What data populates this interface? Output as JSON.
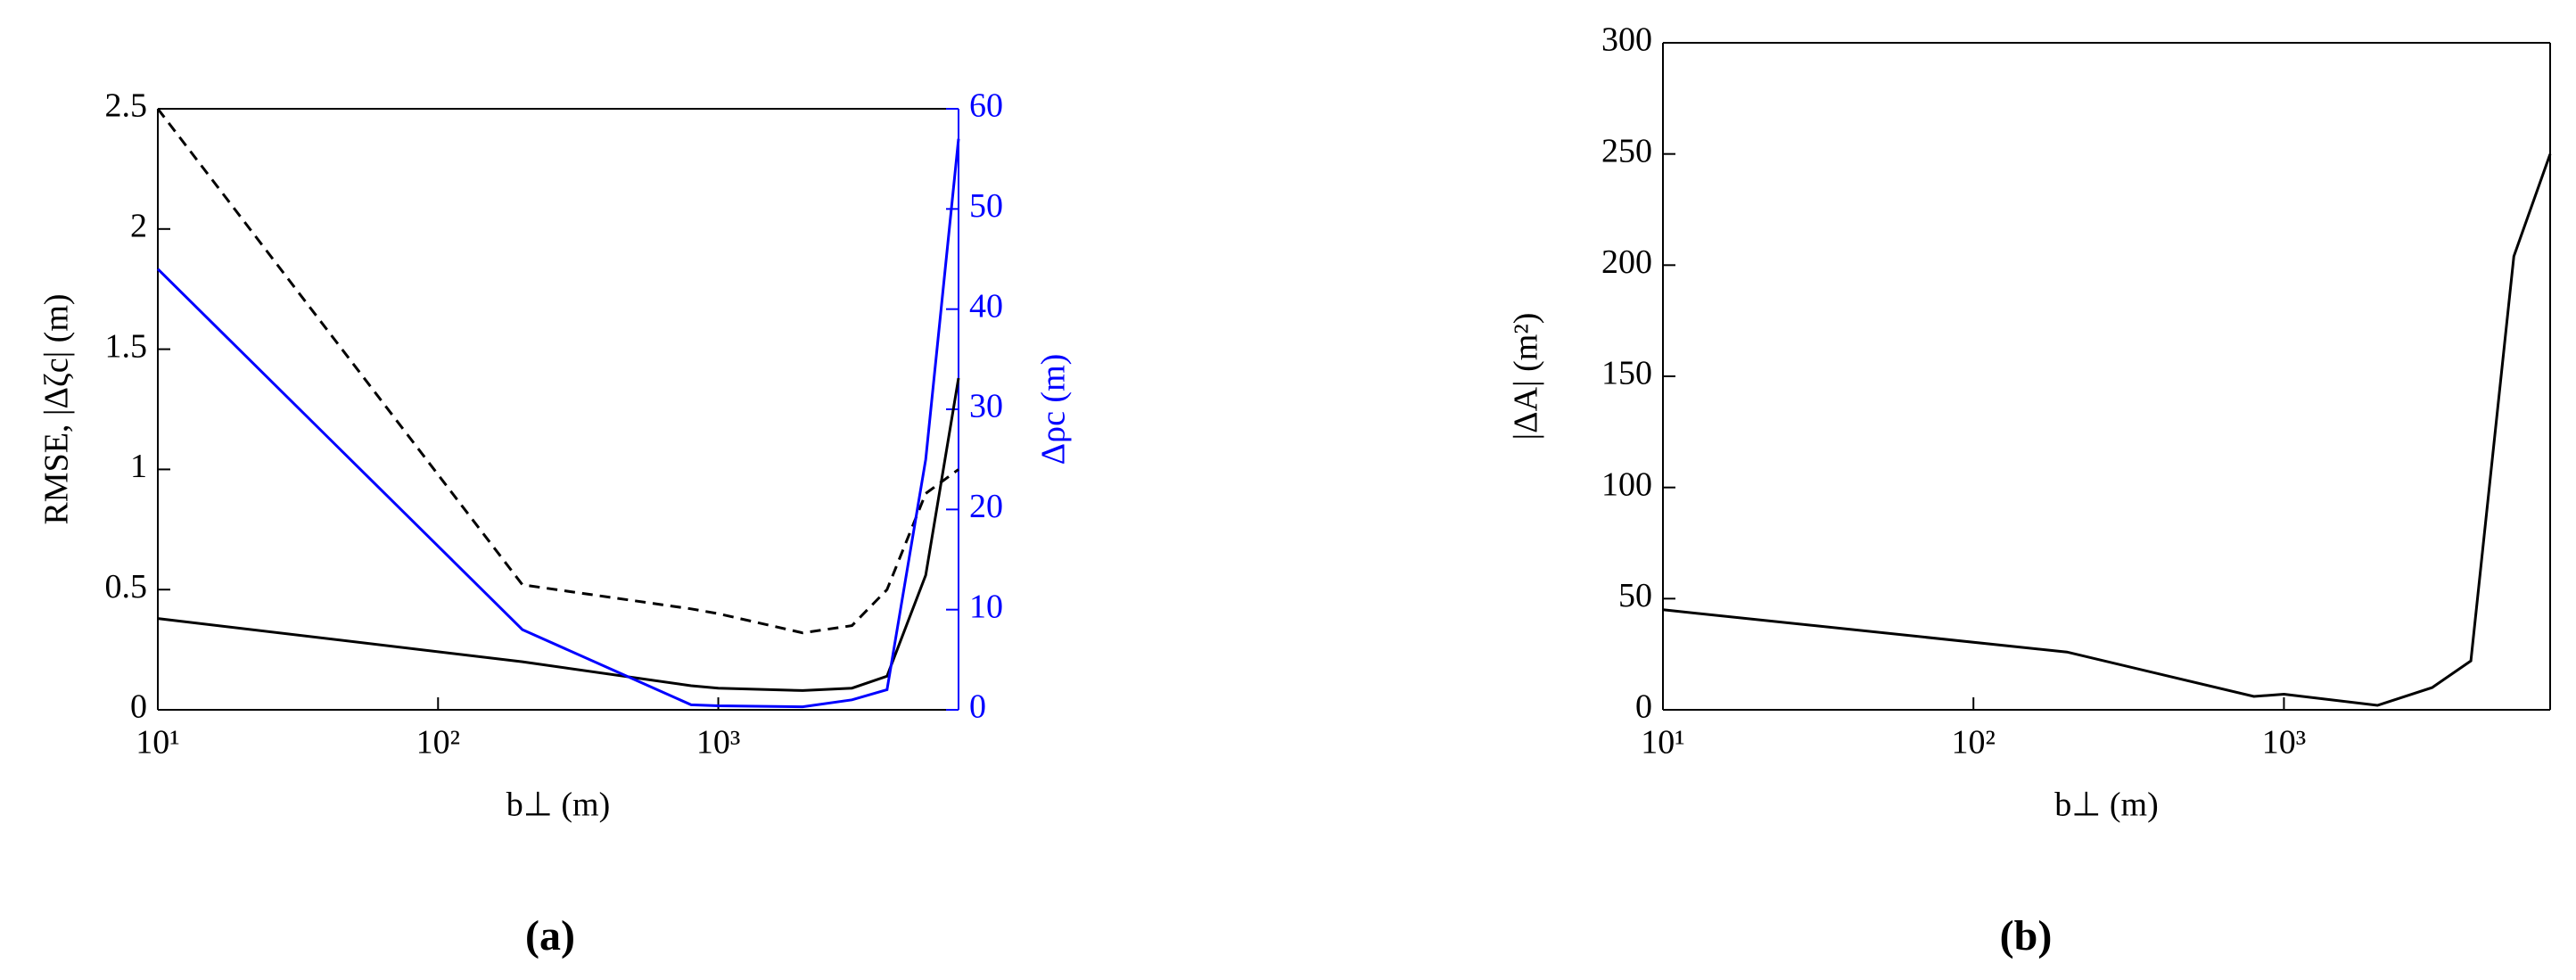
{
  "chart_data": [
    {
      "type": "line",
      "caption": "(a)",
      "xlabel": "b⊥ (m)",
      "ylabel": "RMSE, |Δζc| (m)",
      "y2label": "Δρc (m)",
      "y2color": "#0000ff",
      "xscale": "log",
      "xlim": [
        10,
        7200
      ],
      "xticks": [
        {
          "value": 10,
          "label": "10¹"
        },
        {
          "value": 100,
          "label": "10²"
        },
        {
          "value": 1000,
          "label": "10³"
        }
      ],
      "ylim": [
        0,
        2.5
      ],
      "yticks": [
        0,
        0.5,
        1,
        1.5,
        2,
        2.5
      ],
      "y2lim": [
        0,
        60
      ],
      "y2ticks": [
        0,
        10,
        20,
        30,
        40,
        50,
        60
      ],
      "x": [
        10,
        200,
        800,
        1000,
        2000,
        3000,
        4000,
        5500,
        7200
      ],
      "series": [
        {
          "color": "#000000",
          "linestyle": "solid",
          "values": [
            0.38,
            0.2,
            0.1,
            0.09,
            0.08,
            0.09,
            0.14,
            0.56,
            1.38
          ]
        },
        {
          "color": "#000000",
          "linestyle": "dashed",
          "values": [
            2.5,
            0.52,
            0.42,
            0.4,
            0.32,
            0.35,
            0.5,
            0.9,
            1.0
          ]
        },
        {
          "color": "#0000ff",
          "linestyle": "solid",
          "axis": "y2",
          "values": [
            44,
            8,
            0.5,
            0.4,
            0.3,
            1,
            2,
            25,
            57
          ]
        }
      ]
    },
    {
      "type": "line",
      "caption": "(b)",
      "xlabel": "b⊥ (m)",
      "ylabel": "|ΔA| (m²)",
      "xscale": "log",
      "xlim": [
        10,
        7200
      ],
      "xticks": [
        {
          "value": 10,
          "label": "10¹"
        },
        {
          "value": 100,
          "label": "10²"
        },
        {
          "value": 1000,
          "label": "10³"
        }
      ],
      "ylim": [
        0,
        300
      ],
      "yticks": [
        0,
        50,
        100,
        150,
        200,
        250,
        300
      ],
      "x": [
        10,
        200,
        800,
        1000,
        2000,
        3000,
        4000,
        5500,
        7200
      ],
      "series": [
        {
          "color": "#000000",
          "linestyle": "solid",
          "values": [
            45,
            26,
            6,
            7,
            2,
            10,
            22,
            204,
            250
          ]
        }
      ]
    }
  ]
}
